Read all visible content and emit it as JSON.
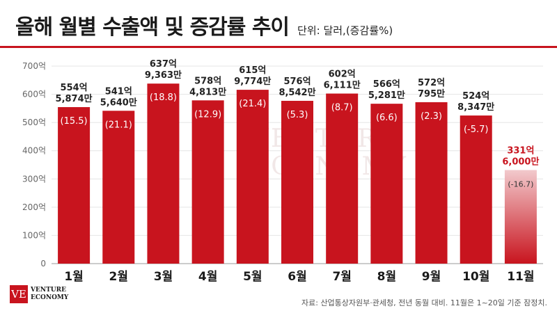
{
  "header": {
    "title": "올해 월별 수출액 및 증감률 추이",
    "unit": "단위: 달러,(증감률%)"
  },
  "watermark": {
    "line1": "VENTURE",
    "line2": "ECONOMY"
  },
  "logo": {
    "mark": "VE",
    "line1": "VENTURE",
    "line2": "ECONOMY"
  },
  "source": "자료: 산업통상자원부·관세청, 전년 동월 대비. 11월은 1~20일 기준 잠정치.",
  "colors": {
    "bar": "#c8141e",
    "bar_faded": "#f2c9cc",
    "accent": "#c8141e",
    "last_label": "#c8141e"
  },
  "chart_data": {
    "type": "bar",
    "categories": [
      "1월",
      "2월",
      "3월",
      "4월",
      "5월",
      "6월",
      "7월",
      "8월",
      "9월",
      "10월",
      "11월"
    ],
    "values": [
      554.5874,
      541.564,
      637.9363,
      578.4813,
      615.9774,
      576.8542,
      602.6111,
      566.5281,
      572.0795,
      524.8347,
      331.6
    ],
    "amount_labels": [
      [
        "554억",
        "5,874만"
      ],
      [
        "541억",
        "5,640만"
      ],
      [
        "637억",
        "9,363만"
      ],
      [
        "578억",
        "4,813만"
      ],
      [
        "615억",
        "9,774만"
      ],
      [
        "576억",
        "8,542만"
      ],
      [
        "602억",
        "6,111만"
      ],
      [
        "566억",
        "5,281만"
      ],
      [
        "572억",
        "795만"
      ],
      [
        "524억",
        "8,347만"
      ],
      [
        "331억",
        "6,000만"
      ]
    ],
    "change_labels": [
      "(15.5)",
      "(21.1)",
      "(18.8)",
      "(12.9)",
      "(21.4)",
      "(5.3)",
      "(8.7)",
      "(6.6)",
      "(2.3)",
      "(-5.7)",
      "(-16.7)"
    ],
    "change_values": [
      15.5,
      21.1,
      18.8,
      12.9,
      21.4,
      5.3,
      8.7,
      6.6,
      2.3,
      -5.7,
      -16.7
    ],
    "ylim": [
      0,
      700
    ],
    "yticks": [
      0,
      100,
      200,
      300,
      400,
      500,
      600,
      700
    ],
    "ytick_labels": [
      "0",
      "100억",
      "200억",
      "300억",
      "400억",
      "500억",
      "600억",
      "700억"
    ],
    "grid": true,
    "title": "올해 월별 수출액 및 증감률 추이",
    "xlabel": "",
    "ylabel": ""
  }
}
